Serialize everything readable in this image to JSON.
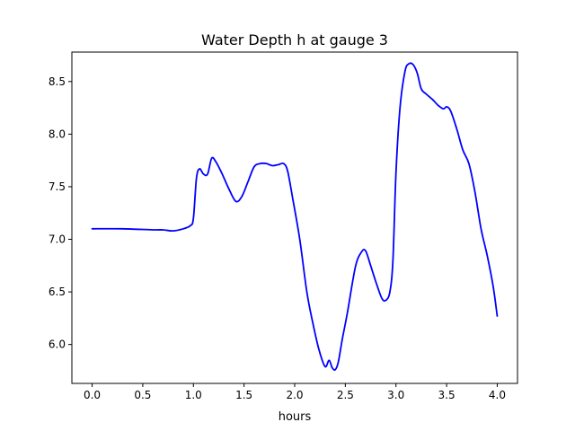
{
  "chart_data": {
    "type": "line",
    "title": "Water Depth h at gauge 3",
    "xlabel": "hours",
    "ylabel": "",
    "xlim": [
      -0.2,
      4.2
    ],
    "ylim": [
      5.63,
      8.78
    ],
    "xticks": [
      0.0,
      0.5,
      1.0,
      1.5,
      2.0,
      2.5,
      3.0,
      3.5,
      4.0
    ],
    "xtick_labels": [
      "0.0",
      "0.5",
      "1.0",
      "1.5",
      "2.0",
      "2.5",
      "3.0",
      "3.5",
      "4.0"
    ],
    "yticks": [
      6.0,
      6.5,
      7.0,
      7.5,
      8.0,
      8.5
    ],
    "ytick_labels": [
      "6.0",
      "6.5",
      "7.0",
      "7.5",
      "8.0",
      "8.5"
    ],
    "grid": false,
    "series": [
      {
        "color": "#0000ff",
        "x": [
          0.0,
          0.3,
          0.6,
          0.7,
          0.8,
          0.9,
          0.97,
          1.0,
          1.03,
          1.06,
          1.1,
          1.14,
          1.18,
          1.22,
          1.28,
          1.35,
          1.42,
          1.48,
          1.54,
          1.6,
          1.66,
          1.72,
          1.78,
          1.84,
          1.89,
          1.93,
          1.98,
          2.05,
          2.12,
          2.18,
          2.24,
          2.3,
          2.34,
          2.37,
          2.4,
          2.43,
          2.47,
          2.52,
          2.6,
          2.66,
          2.7,
          2.75,
          2.8,
          2.86,
          2.9,
          2.94,
          2.97,
          3.0,
          3.04,
          3.09,
          3.13,
          3.17,
          3.21,
          3.25,
          3.3,
          3.36,
          3.42,
          3.47,
          3.5,
          3.54,
          3.6,
          3.66,
          3.72,
          3.78,
          3.84,
          3.9,
          3.96,
          4.0
        ],
        "y": [
          7.1,
          7.1,
          7.09,
          7.09,
          7.08,
          7.1,
          7.13,
          7.2,
          7.58,
          7.67,
          7.62,
          7.62,
          7.77,
          7.74,
          7.63,
          7.48,
          7.36,
          7.41,
          7.55,
          7.69,
          7.72,
          7.72,
          7.7,
          7.71,
          7.72,
          7.65,
          7.39,
          7.0,
          6.5,
          6.2,
          5.95,
          5.79,
          5.85,
          5.78,
          5.76,
          5.83,
          6.05,
          6.3,
          6.74,
          6.88,
          6.89,
          6.75,
          6.6,
          6.44,
          6.42,
          6.5,
          6.8,
          7.63,
          8.25,
          8.6,
          8.67,
          8.66,
          8.58,
          8.43,
          8.38,
          8.33,
          8.27,
          8.24,
          8.26,
          8.22,
          8.05,
          7.85,
          7.72,
          7.45,
          7.1,
          6.85,
          6.55,
          6.27
        ]
      }
    ]
  }
}
